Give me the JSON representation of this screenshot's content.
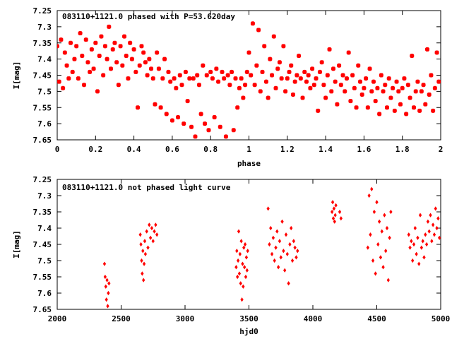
{
  "chart_data": [
    {
      "type": "scatter",
      "title": "083110+1121.0 phased with P=53.620day",
      "xlabel": "phase",
      "ylabel": "I[mag]",
      "xlim": [
        0,
        2
      ],
      "ylim": [
        7.25,
        7.65
      ],
      "y_inverted": true,
      "xticks": [
        "0",
        "0.2",
        "0.4",
        "0.6",
        "0.8",
        "1",
        "1.2",
        "1.4",
        "1.6",
        "1.8",
        "2"
      ],
      "yticks": [
        "7.25",
        "7.3",
        "7.35",
        "7.4",
        "7.45",
        "7.5",
        "7.55",
        "7.6",
        "7.65"
      ],
      "marker": "star",
      "color": "#ff0000",
      "series": [
        {
          "x": [
            0.0,
            0.01,
            0.02,
            0.03,
            0.04,
            0.05,
            0.06,
            0.07,
            0.08,
            0.09,
            0.1,
            0.11,
            0.12,
            0.13,
            0.14,
            0.15,
            0.16,
            0.17,
            0.18,
            0.19,
            0.2,
            0.21,
            0.22,
            0.23,
            0.24,
            0.25,
            0.26,
            0.27,
            0.28,
            0.29,
            0.3,
            0.31,
            0.32,
            0.33,
            0.34,
            0.35,
            0.36,
            0.37,
            0.38,
            0.39,
            0.4,
            0.41,
            0.42,
            0.43,
            0.44,
            0.45,
            0.46,
            0.47,
            0.48,
            0.49,
            0.5,
            0.51,
            0.52,
            0.53,
            0.54,
            0.55,
            0.56,
            0.57,
            0.58,
            0.59,
            0.6,
            0.61,
            0.62,
            0.63,
            0.64,
            0.65,
            0.66,
            0.67,
            0.68,
            0.69,
            0.7,
            0.71,
            0.72,
            0.73,
            0.74,
            0.75,
            0.76,
            0.77,
            0.78,
            0.79,
            0.8,
            0.81,
            0.82,
            0.83,
            0.84,
            0.85,
            0.86,
            0.87,
            0.88,
            0.89,
            0.9,
            0.91,
            0.92,
            0.93,
            0.94,
            0.95,
            0.96,
            0.97,
            0.98,
            0.99
          ],
          "y": [
            7.36,
            7.47,
            7.34,
            7.49,
            7.38,
            7.42,
            7.46,
            7.35,
            7.44,
            7.4,
            7.36,
            7.46,
            7.32,
            7.39,
            7.48,
            7.34,
            7.41,
            7.44,
            7.37,
            7.43,
            7.35,
            7.5,
            7.39,
            7.33,
            7.45,
            7.36,
            7.4,
            7.3,
            7.43,
            7.37,
            7.35,
            7.41,
            7.48,
            7.36,
            7.42,
            7.33,
            7.39,
            7.46,
            7.35,
            7.4,
            7.37,
            7.44,
            7.55,
            7.42,
            7.36,
            7.38,
            7.41,
            7.45,
            7.4,
            7.43,
            7.46,
            7.54,
            7.38,
            7.43,
            7.55,
            7.46,
            7.4,
            7.57,
            7.44,
            7.47,
            7.59,
            7.46,
            7.49,
            7.58,
            7.45,
            7.48,
            7.6,
            7.44,
            7.53,
            7.46,
            7.61,
            7.46,
            7.64,
            7.45,
            7.48,
            7.57,
            7.42,
            7.6,
            7.45,
            7.62,
            7.44,
            7.46,
            7.58,
            7.43,
            7.47,
            7.61,
            7.44,
            7.46,
            7.64,
            7.45,
            7.48,
            7.44,
            7.62,
            7.46,
            7.55,
            7.49,
            7.46,
            7.52,
            7.48,
            7.44
          ]
        },
        {
          "x": [
            1.0,
            1.01,
            1.02,
            1.03,
            1.04,
            1.05,
            1.06,
            1.07,
            1.08,
            1.09,
            1.1,
            1.11,
            1.12,
            1.13,
            1.14,
            1.15,
            1.16,
            1.17,
            1.18,
            1.19,
            1.2,
            1.21,
            1.22,
            1.23,
            1.24,
            1.25,
            1.26,
            1.27,
            1.28,
            1.29,
            1.3,
            1.31,
            1.32,
            1.33,
            1.34,
            1.35,
            1.36,
            1.37,
            1.38,
            1.39,
            1.4,
            1.41,
            1.42,
            1.43,
            1.44,
            1.45,
            1.46,
            1.47,
            1.48,
            1.49,
            1.5,
            1.51,
            1.52,
            1.53,
            1.54,
            1.55,
            1.56,
            1.57,
            1.58,
            1.59,
            1.6,
            1.61,
            1.62,
            1.63,
            1.64,
            1.65,
            1.66,
            1.67,
            1.68,
            1.69,
            1.7,
            1.71,
            1.72,
            1.73,
            1.74,
            1.75,
            1.76,
            1.77,
            1.78,
            1.79,
            1.8,
            1.81,
            1.82,
            1.83,
            1.84,
            1.85,
            1.86,
            1.87,
            1.88,
            1.89,
            1.9,
            1.91,
            1.92,
            1.93,
            1.94,
            1.95,
            1.96,
            1.97,
            1.98,
            1.99
          ],
          "y": [
            7.38,
            7.45,
            7.29,
            7.48,
            7.42,
            7.31,
            7.5,
            7.44,
            7.36,
            7.47,
            7.52,
            7.4,
            7.45,
            7.33,
            7.49,
            7.43,
            7.41,
            7.46,
            7.36,
            7.5,
            7.46,
            7.44,
            7.42,
            7.51,
            7.47,
            7.45,
            7.39,
            7.46,
            7.52,
            7.44,
            7.47,
            7.45,
            7.49,
            7.43,
            7.48,
            7.46,
            7.56,
            7.44,
            7.41,
            7.48,
            7.52,
            7.45,
            7.37,
            7.5,
            7.43,
            7.47,
            7.54,
            7.42,
            7.48,
            7.45,
            7.5,
            7.46,
            7.38,
            7.53,
            7.45,
            7.49,
            7.55,
            7.42,
            7.47,
            7.51,
            7.49,
            7.46,
            7.55,
            7.43,
            7.5,
            7.47,
            7.53,
            7.49,
            7.57,
            7.45,
            7.5,
            7.48,
            7.55,
            7.46,
            7.52,
            7.49,
            7.56,
            7.47,
            7.5,
            7.54,
            7.49,
            7.46,
            7.57,
            7.48,
            7.52,
            7.39,
            7.55,
            7.5,
            7.47,
            7.56,
            7.5,
            7.48,
            7.54,
            7.37,
            7.51,
            7.45,
            7.56,
            7.49,
            7.38,
            7.47
          ]
        }
      ]
    },
    {
      "type": "scatter",
      "title": "083110+1121.0 not phased light curve",
      "xlabel": "hjd0",
      "ylabel": "I[mag]",
      "xlim": [
        2000,
        5000
      ],
      "ylim": [
        7.25,
        7.65
      ],
      "y_inverted": true,
      "xticks": [
        "2000",
        "2500",
        "3000",
        "3500",
        "4000",
        "4500",
        "5000"
      ],
      "yticks": [
        "7.25",
        "7.3",
        "7.35",
        "7.4",
        "7.45",
        "7.5",
        "7.55",
        "7.6",
        "7.65"
      ],
      "marker": "diamond",
      "color": "#ff0000",
      "series": [
        {
          "x": [
            2370,
            2375,
            2380,
            2385,
            2390,
            2395,
            2400,
            2405,
            2650,
            2655,
            2660,
            2665,
            2670,
            2675,
            2680,
            2685,
            2690,
            2700,
            2710,
            2720,
            2730,
            2740,
            2750,
            2760,
            2770,
            2780,
            3400,
            3405,
            3410,
            3415,
            3420,
            3425,
            3430,
            3435,
            3440,
            3445,
            3450,
            3455,
            3460,
            3465,
            3470,
            3475,
            3480,
            3485,
            3490,
            3650,
            3660,
            3670,
            3680,
            3690,
            3700,
            3710,
            3720,
            3730,
            3740,
            3750,
            3760,
            3770,
            3780,
            3790,
            3800,
            3810,
            3820,
            3830,
            3840,
            3850,
            3860,
            3870,
            3880,
            4150,
            4155,
            4160,
            4165,
            4170,
            4175,
            4180,
            4210,
            4220,
            4430,
            4440,
            4450,
            4460,
            4470,
            4480,
            4490,
            4500,
            4510,
            4520,
            4530,
            4540,
            4550,
            4560,
            4570,
            4580,
            4590,
            4600,
            4610,
            4750,
            4760,
            4770,
            4780,
            4790,
            4800,
            4810,
            4820,
            4830,
            4840,
            4850,
            4860,
            4870,
            4880,
            4890,
            4900,
            4910,
            4920,
            4930,
            4940,
            4950,
            4960,
            4970,
            4980,
            4990
          ],
          "y": [
            7.51,
            7.55,
            7.58,
            7.62,
            7.56,
            7.64,
            7.6,
            7.57,
            7.42,
            7.45,
            7.5,
            7.54,
            7.47,
            7.56,
            7.51,
            7.44,
            7.48,
            7.41,
            7.46,
            7.39,
            7.43,
            7.4,
            7.44,
            7.41,
            7.39,
            7.42,
            7.52,
            7.47,
            7.55,
            7.5,
            7.41,
            7.54,
            7.48,
            7.57,
            7.44,
            7.62,
            7.51,
            7.58,
            7.46,
            7.52,
            7.45,
            7.55,
            7.49,
            7.53,
            7.47,
            7.34,
            7.45,
            7.4,
            7.48,
            7.43,
            7.5,
            7.46,
            7.41,
            7.52,
            7.44,
            7.49,
            7.38,
            7.47,
            7.53,
            7.42,
            7.48,
            7.57,
            7.45,
            7.4,
            7.5,
            7.44,
            7.46,
            7.49,
            7.47,
            7.35,
            7.32,
            7.37,
            7.34,
            7.38,
            7.36,
            7.33,
            7.35,
            7.37,
            7.46,
            7.3,
            7.42,
            7.28,
            7.5,
            7.35,
            7.54,
            7.32,
            7.45,
            7.38,
            7.49,
            7.41,
            7.52,
            7.36,
            7.47,
            7.4,
            7.56,
            7.43,
            7.35,
            7.42,
            7.46,
            7.44,
            7.5,
            7.45,
            7.4,
            7.48,
            7.43,
            7.51,
            7.36,
            7.46,
            7.44,
            7.49,
            7.42,
            7.45,
            7.38,
            7.41,
            7.36,
            7.44,
            7.39,
            7.42,
            7.34,
            7.4,
            7.37,
            7.43
          ]
        }
      ]
    }
  ]
}
